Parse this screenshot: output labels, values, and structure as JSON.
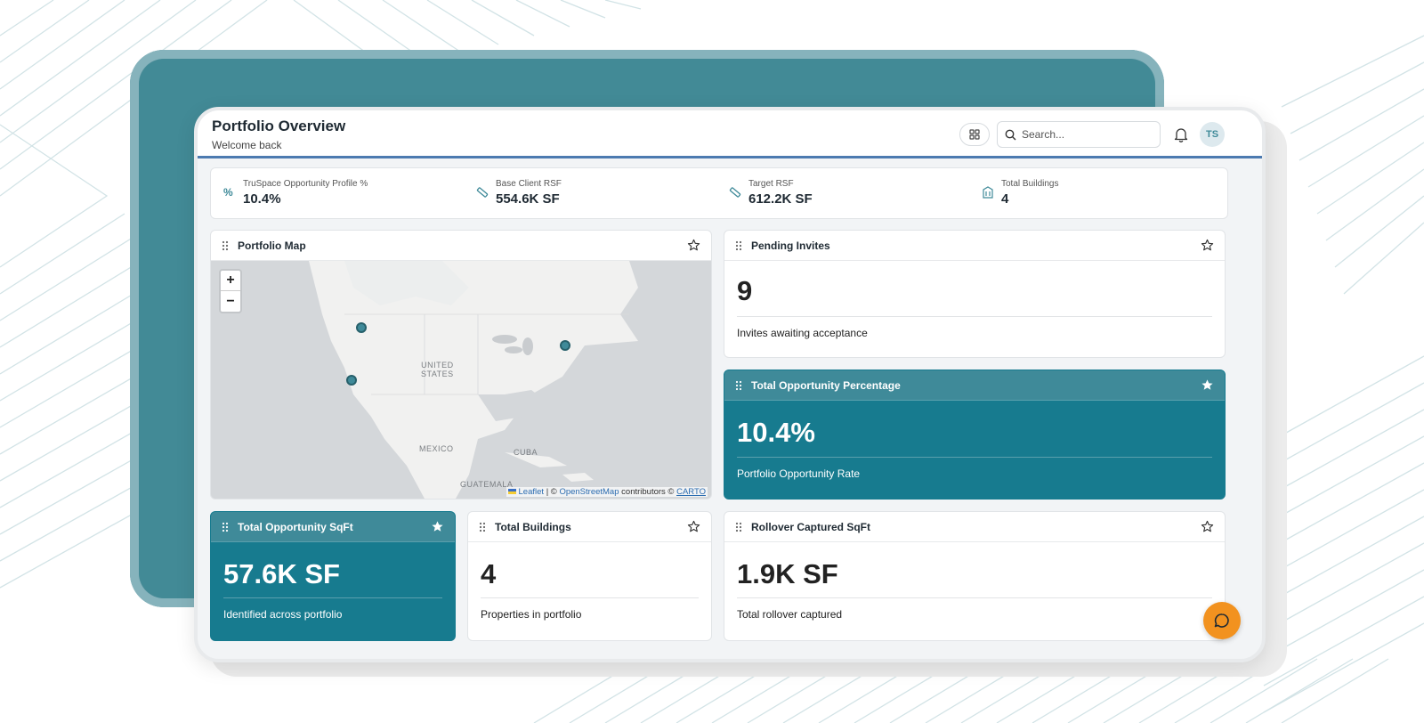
{
  "header": {
    "title": "Portfolio Overview",
    "subtitle": "Welcome back",
    "search_placeholder": "Search...",
    "avatar_initials": "TS"
  },
  "metrics": [
    {
      "label": "TruSpace Opportunity Profile %",
      "value": "10.4%",
      "icon": "percent-icon"
    },
    {
      "label": "Base Client RSF",
      "value": "554.6K SF",
      "icon": "ruler-icon"
    },
    {
      "label": "Target RSF",
      "value": "612.2K SF",
      "icon": "ruler-icon"
    },
    {
      "label": "Total Buildings",
      "value": "4",
      "icon": "building-icon"
    }
  ],
  "map_card": {
    "title": "Portfolio Map",
    "labels": {
      "us": "UNITED\nSTATES",
      "mexico": "MEXICO",
      "cuba": "CUBA",
      "guatemala": "GUATEMALA"
    },
    "attribution": {
      "leaflet": "Leaflet",
      "sep": "| ©",
      "osm": "OpenStreetMap",
      "contrib": "contributors ©",
      "carto": "CARTO"
    },
    "zoom_in": "+",
    "zoom_out": "−"
  },
  "pending_invites": {
    "title": "Pending Invites",
    "value": "9",
    "desc": "Invites awaiting acceptance"
  },
  "total_opportunity_pct": {
    "title": "Total Opportunity Percentage",
    "value": "10.4%",
    "desc": "Portfolio Opportunity Rate"
  },
  "total_opportunity_sqft": {
    "title": "Total Opportunity SqFt",
    "value": "57.6K SF",
    "desc": "Identified across portfolio"
  },
  "total_buildings": {
    "title": "Total Buildings",
    "value": "4",
    "desc": "Properties in portfolio"
  },
  "rollover": {
    "title": "Rollover Captured SqFt",
    "value": "1.9K SF",
    "desc": "Total rollover captured"
  },
  "colors": {
    "accent": "#3f8a99",
    "teal_card": "#177b8f",
    "chat": "#f2921f",
    "header_rule": "#4c7ab0"
  }
}
